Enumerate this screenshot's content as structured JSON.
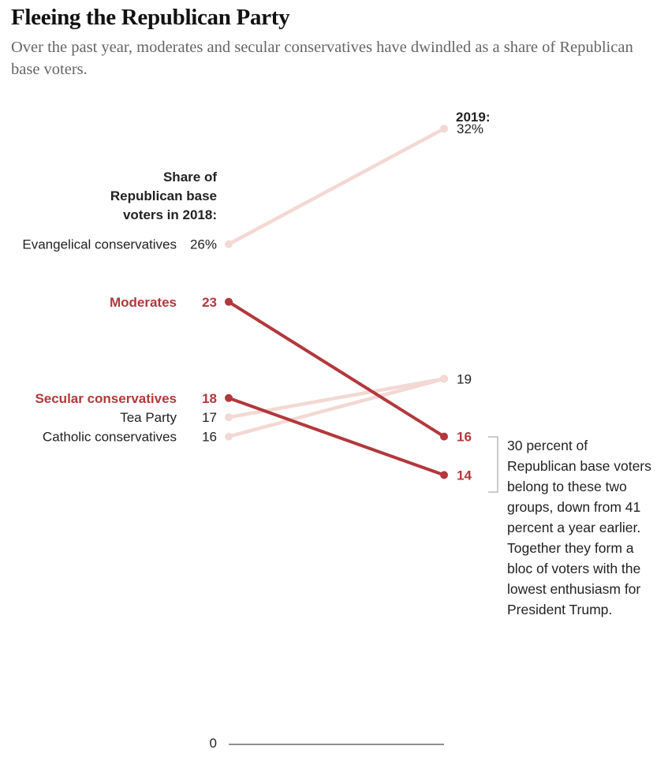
{
  "header": {
    "title": "Fleeing the Republican Party",
    "subtitle": "Over the past year, moderates and secular conservatives have dwindled as a share of Republican base voters."
  },
  "chart_data": {
    "type": "line",
    "chart_subtype": "slope",
    "left_header": [
      "Share of",
      "Republican base",
      "voters in 2018:"
    ],
    "right_header": "2019:",
    "x": [
      2018,
      2019
    ],
    "ylim": [
      0,
      32
    ],
    "zero_label": "0",
    "series": [
      {
        "name": "Evangelical conservatives",
        "values": [
          26,
          32
        ],
        "left_value_label": "26%",
        "right_value_label": "32%",
        "highlight": false,
        "color": "#f3d8d3"
      },
      {
        "name": "Moderates",
        "values": [
          23,
          16
        ],
        "left_value_label": "23",
        "right_value_label": "16",
        "highlight": true,
        "color": "#b2383c"
      },
      {
        "name": "Secular conservatives",
        "values": [
          18,
          14
        ],
        "left_value_label": "18",
        "right_value_label": "14",
        "highlight": true,
        "color": "#b2383c"
      },
      {
        "name": "Tea Party",
        "values": [
          17,
          19
        ],
        "left_value_label": "17",
        "right_value_label": "19",
        "highlight": false,
        "color": "#f3d8d3"
      },
      {
        "name": "Catholic conservatives",
        "values": [
          16,
          19
        ],
        "left_value_label": "16",
        "right_value_label": "",
        "highlight": false,
        "color": "#f3d8d3"
      }
    ],
    "annotation": "30 percent of Republican base voters belong to these two groups, down from 41 percent a year earlier. Together they form a bloc of voters with the lowest enthusiasm for President Trump."
  }
}
